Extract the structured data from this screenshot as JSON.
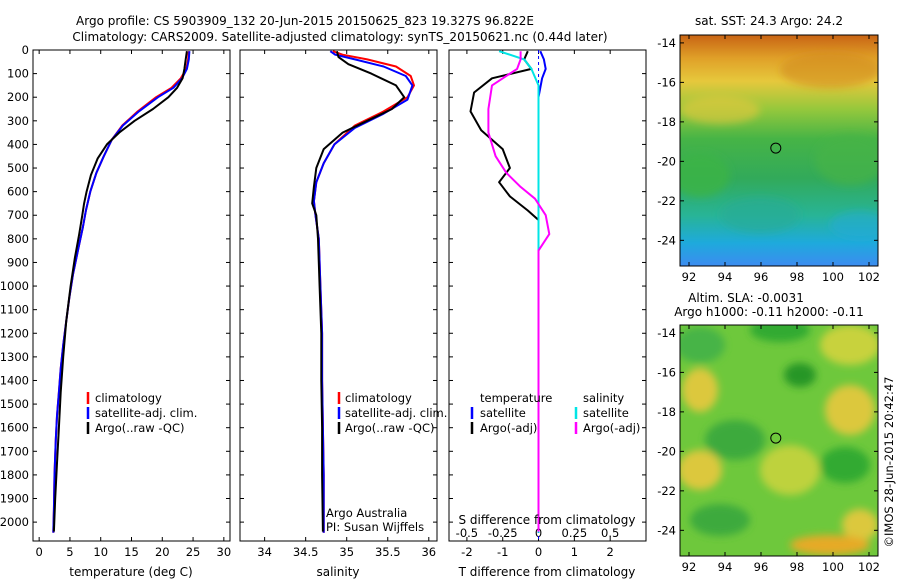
{
  "header": {
    "line1": "Argo profile: CS 5903909_132 20-Jun-2015 20150625_823 19.327S 96.822E",
    "line2": "Climatology: CARS2009. Satellite-adjusted climatology: synTS_20150621.nc (0.44d later)"
  },
  "colors": {
    "climatology": "#ff0000",
    "satellite": "#0000ff",
    "argo": "#000000",
    "salinity_satellite": "#00e5e5",
    "salinity_argo": "#ff00ff"
  },
  "chart_data": [
    {
      "type": "line",
      "name": "temperature-profile",
      "xlabel": "temperature (deg C)",
      "ylabel": "",
      "xlim": [
        -1,
        31
      ],
      "ylim": [
        2080,
        0
      ],
      "xticks": [
        0,
        5,
        10,
        15,
        20,
        25,
        30
      ],
      "yticks": [
        0,
        100,
        200,
        300,
        400,
        500,
        600,
        700,
        800,
        900,
        1000,
        1100,
        1200,
        1300,
        1400,
        1500,
        1600,
        1700,
        1800,
        1900,
        2000
      ],
      "legend": {
        "position": "lower-center",
        "entries": [
          "climatology",
          "satellite-adj. clim.",
          "Argo(..raw -QC)"
        ]
      },
      "series": [
        {
          "name": "climatology",
          "color": "#ff0000",
          "x": [
            24.3,
            24.2,
            23.9,
            23.0,
            21.5,
            19.0,
            16.0,
            13.5,
            11.8,
            10.5,
            9.3,
            8.3,
            7.6,
            7.1,
            6.3,
            5.5,
            4.9,
            4.4,
            3.9,
            3.5,
            3.2,
            2.9,
            2.7,
            2.5,
            2.4,
            2.3
          ],
          "y": [
            5,
            40,
            80,
            120,
            160,
            200,
            260,
            320,
            380,
            450,
            520,
            600,
            680,
            750,
            850,
            950,
            1050,
            1150,
            1250,
            1350,
            1450,
            1550,
            1650,
            1800,
            1950,
            2045
          ]
        },
        {
          "name": "satellite-adj. clim.",
          "color": "#0000ff",
          "x": [
            24.4,
            24.3,
            24.0,
            23.2,
            21.8,
            19.3,
            16.2,
            13.6,
            11.8,
            10.5,
            9.3,
            8.3,
            7.6,
            7.1,
            6.3,
            5.5,
            4.9,
            4.4,
            3.9,
            3.5,
            3.2,
            2.9,
            2.7,
            2.5,
            2.4,
            2.3
          ],
          "y": [
            5,
            40,
            80,
            120,
            160,
            200,
            260,
            320,
            380,
            450,
            520,
            600,
            680,
            750,
            850,
            950,
            1050,
            1150,
            1250,
            1350,
            1450,
            1550,
            1650,
            1800,
            1950,
            2045
          ]
        },
        {
          "name": "Argo(..raw -QC)",
          "color": "#000000",
          "x": [
            24.0,
            23.8,
            23.6,
            23.3,
            22.4,
            21.0,
            18.5,
            15.5,
            13.0,
            11.0,
            9.5,
            8.4,
            7.7,
            7.3,
            7.0,
            6.5,
            5.8,
            5.1,
            4.4,
            3.9,
            3.5,
            3.2,
            2.9,
            2.6,
            2.4
          ],
          "y": [
            5,
            40,
            80,
            120,
            160,
            200,
            250,
            300,
            350,
            400,
            460,
            530,
            600,
            650,
            700,
            780,
            880,
            1000,
            1150,
            1300,
            1450,
            1600,
            1750,
            1900,
            2040
          ]
        }
      ]
    },
    {
      "type": "line",
      "name": "salinity-profile",
      "xlabel": "salinity",
      "xlim": [
        33.7,
        36.1
      ],
      "ylim": [
        2080,
        0
      ],
      "xticks": [
        34,
        34.5,
        35,
        35.5,
        36
      ],
      "legend": {
        "position": "lower-center",
        "entries": [
          "climatology",
          "satellite-adj. clim.",
          "Argo(..raw -QC)"
        ]
      },
      "annotations": [
        "Argo Australia",
        "PI: Susan Wijffels"
      ],
      "series": [
        {
          "name": "climatology",
          "color": "#ff0000",
          "x": [
            34.83,
            34.95,
            35.25,
            35.6,
            35.78,
            35.82,
            35.74,
            35.45,
            35.1,
            34.85,
            34.72,
            34.63,
            34.6,
            34.62,
            34.66,
            34.68,
            34.7,
            34.7,
            34.71,
            34.72,
            34.72
          ],
          "y": [
            5,
            20,
            40,
            70,
            110,
            150,
            200,
            260,
            320,
            400,
            480,
            560,
            640,
            700,
            800,
            1000,
            1200,
            1400,
            1600,
            1800,
            2045
          ]
        },
        {
          "name": "satellite-adj. clim.",
          "color": "#0000ff",
          "x": [
            34.8,
            34.86,
            35.1,
            35.45,
            35.72,
            35.8,
            35.74,
            35.45,
            35.1,
            34.85,
            34.72,
            34.63,
            34.6,
            34.62,
            34.66,
            34.68,
            34.7,
            34.7,
            34.71,
            34.72,
            34.72
          ],
          "y": [
            5,
            20,
            40,
            70,
            110,
            150,
            210,
            270,
            330,
            400,
            480,
            560,
            640,
            700,
            800,
            1000,
            1200,
            1400,
            1600,
            1800,
            2045
          ]
        },
        {
          "name": "Argo(..raw -QC)",
          "color": "#000000",
          "x": [
            34.88,
            34.9,
            35.02,
            35.3,
            35.6,
            35.7,
            35.55,
            35.25,
            34.95,
            34.72,
            34.63,
            34.6,
            34.58,
            34.63,
            34.65,
            34.66,
            34.67,
            34.69,
            34.69,
            34.7,
            34.7,
            34.71
          ],
          "y": [
            5,
            30,
            60,
            100,
            150,
            200,
            250,
            300,
            350,
            420,
            500,
            580,
            650,
            700,
            800,
            900,
            1000,
            1200,
            1400,
            1600,
            1800,
            2040
          ]
        }
      ]
    },
    {
      "type": "line",
      "name": "difference-profile",
      "xlabel": "T difference from climatology",
      "xlabel_top": "S difference from climatology",
      "xlim": [
        -2.5,
        3.0
      ],
      "ylim": [
        2080,
        0
      ],
      "xticks": [
        -2,
        -1,
        0,
        1,
        2
      ],
      "xticks_s": [
        {
          "v": -0.5,
          "label": "-0.5"
        },
        {
          "v": -0.25,
          "label": "-0.25"
        },
        {
          "v": 0,
          "label": "0"
        },
        {
          "v": 0.25,
          "label": "0.25"
        },
        {
          "v": 0.5,
          "label": "0.5"
        }
      ],
      "legend": {
        "position": "lower",
        "temperature_title": "temperature",
        "salinity_title": "salinity",
        "entries": [
          "satellite",
          "Argo(-adj)",
          "satellite",
          "Argo(-adj)"
        ]
      },
      "series": [
        {
          "name": "temperature satellite",
          "color": "#0000ff",
          "x": [
            0.05,
            0.15,
            0.2,
            0.1,
            0,
            0,
            0,
            0,
            0,
            0,
            0,
            0,
            0
          ],
          "y": [
            5,
            40,
            80,
            120,
            200,
            300,
            500,
            700,
            900,
            1200,
            1500,
            1800,
            2045
          ]
        },
        {
          "name": "temperature Argo",
          "color": "#000000",
          "x": [
            -0.3,
            -0.4,
            -0.2,
            -1.3,
            -1.8,
            -1.9,
            -1.6,
            -1.0,
            -0.8,
            -1.1,
            -0.8,
            -0.3,
            0,
            0,
            0,
            0,
            0
          ],
          "y": [
            5,
            40,
            80,
            120,
            180,
            260,
            340,
            420,
            500,
            560,
            620,
            680,
            720,
            900,
            1200,
            1600,
            2040
          ]
        },
        {
          "name": "salinity satellite",
          "color": "#00e5e5",
          "x": [
            -1.1,
            -0.4,
            -0.2,
            0,
            0,
            0,
            0,
            0,
            0,
            0,
            0,
            0
          ],
          "y": [
            5,
            40,
            80,
            150,
            250,
            400,
            600,
            800,
            1000,
            1400,
            1800,
            2045
          ]
        },
        {
          "name": "salinity Argo",
          "color": "#ff00ff",
          "x": [
            -0.5,
            -0.5,
            -0.6,
            -1.3,
            -1.4,
            -1.4,
            -1.2,
            -0.9,
            -0.5,
            -0.1,
            0.2,
            0.3,
            0,
            0,
            0,
            0
          ],
          "y": [
            5,
            40,
            80,
            150,
            250,
            350,
            450,
            520,
            580,
            630,
            700,
            780,
            850,
            1200,
            1600,
            2040
          ]
        }
      ]
    },
    {
      "type": "heatmap",
      "name": "sst-map",
      "title": "sat. SST: 24.3 Argo: 24.2",
      "xlim": [
        91.5,
        102.5
      ],
      "ylim": [
        -25.3,
        -13.6
      ],
      "xticks": [
        92,
        94,
        96,
        98,
        100,
        102
      ],
      "yticks": [
        -14,
        -16,
        -18,
        -20,
        -22,
        -24
      ],
      "marker": {
        "x": 96.822,
        "y": -19.327
      }
    },
    {
      "type": "heatmap",
      "name": "sla-map",
      "title": "Altim. SLA: -0.0031",
      "subtitle": "Argo h1000: -0.11 h2000: -0.11",
      "xlim": [
        91.5,
        102.5
      ],
      "ylim": [
        -25.3,
        -13.6
      ],
      "xticks": [
        92,
        94,
        96,
        98,
        100,
        102
      ],
      "yticks": [
        -14,
        -16,
        -18,
        -20,
        -22,
        -24
      ],
      "marker": {
        "x": 96.822,
        "y": -19.327
      }
    }
  ],
  "side_note": "©IMOS 28-Jun-2015 20:42:47"
}
